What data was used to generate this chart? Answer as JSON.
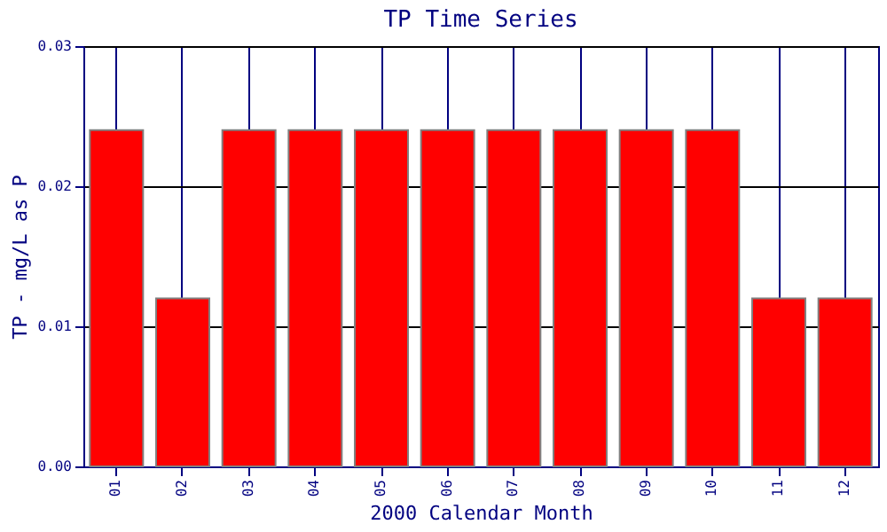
{
  "chart_data": {
    "type": "bar",
    "title": "TP Time Series",
    "xlabel": "2000 Calendar Month",
    "ylabel": "TP - mg/L as P",
    "categories": [
      "01",
      "02",
      "03",
      "04",
      "05",
      "06",
      "07",
      "08",
      "09",
      "10",
      "11",
      "12"
    ],
    "values": [
      0.024,
      0.012,
      0.024,
      0.024,
      0.024,
      0.024,
      0.024,
      0.024,
      0.024,
      0.024,
      0.012,
      0.012
    ],
    "color": "#ff0000",
    "ylim": [
      0,
      0.03
    ],
    "yticks": [
      {
        "value": 0,
        "label": "0.00"
      },
      {
        "value": 0.01,
        "label": "0.01"
      },
      {
        "value": 0.02,
        "label": "0.02"
      },
      {
        "value": 0.03,
        "label": "0.03"
      }
    ],
    "grid": true
  }
}
